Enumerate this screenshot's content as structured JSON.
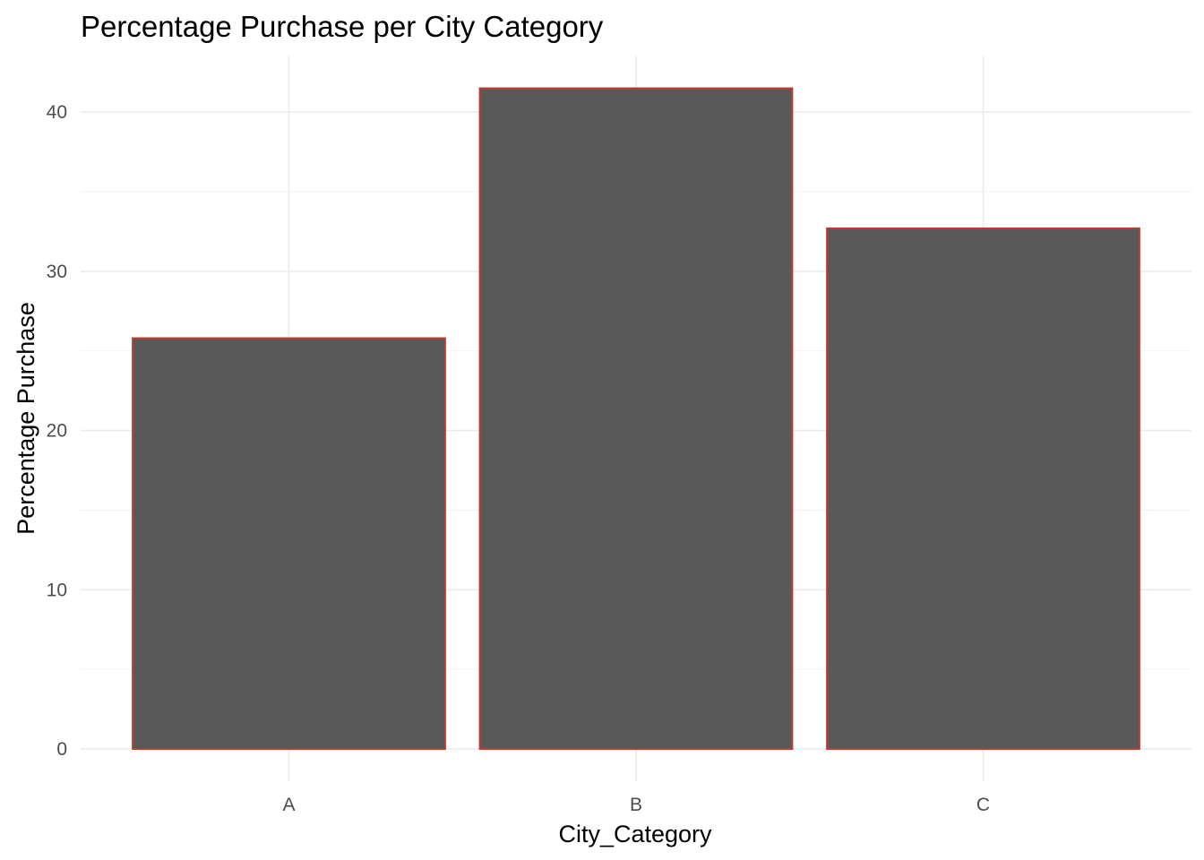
{
  "chart_data": {
    "type": "bar",
    "title": "Percentage Purchase per City Category",
    "xlabel": "City_Category",
    "ylabel": "Percentage Purchase",
    "categories": [
      "A",
      "B",
      "C"
    ],
    "values": [
      25.8,
      41.5,
      32.7
    ],
    "ylim": [
      0,
      43.5
    ],
    "yticks": [
      0,
      10,
      20,
      30,
      40
    ],
    "ytick_labels": [
      "0",
      "10",
      "20",
      "30",
      "40"
    ],
    "grid": true,
    "colors": {
      "bar_fill": "#595959",
      "bar_outline": "#c0392b",
      "grid": "#ebebeb"
    }
  }
}
